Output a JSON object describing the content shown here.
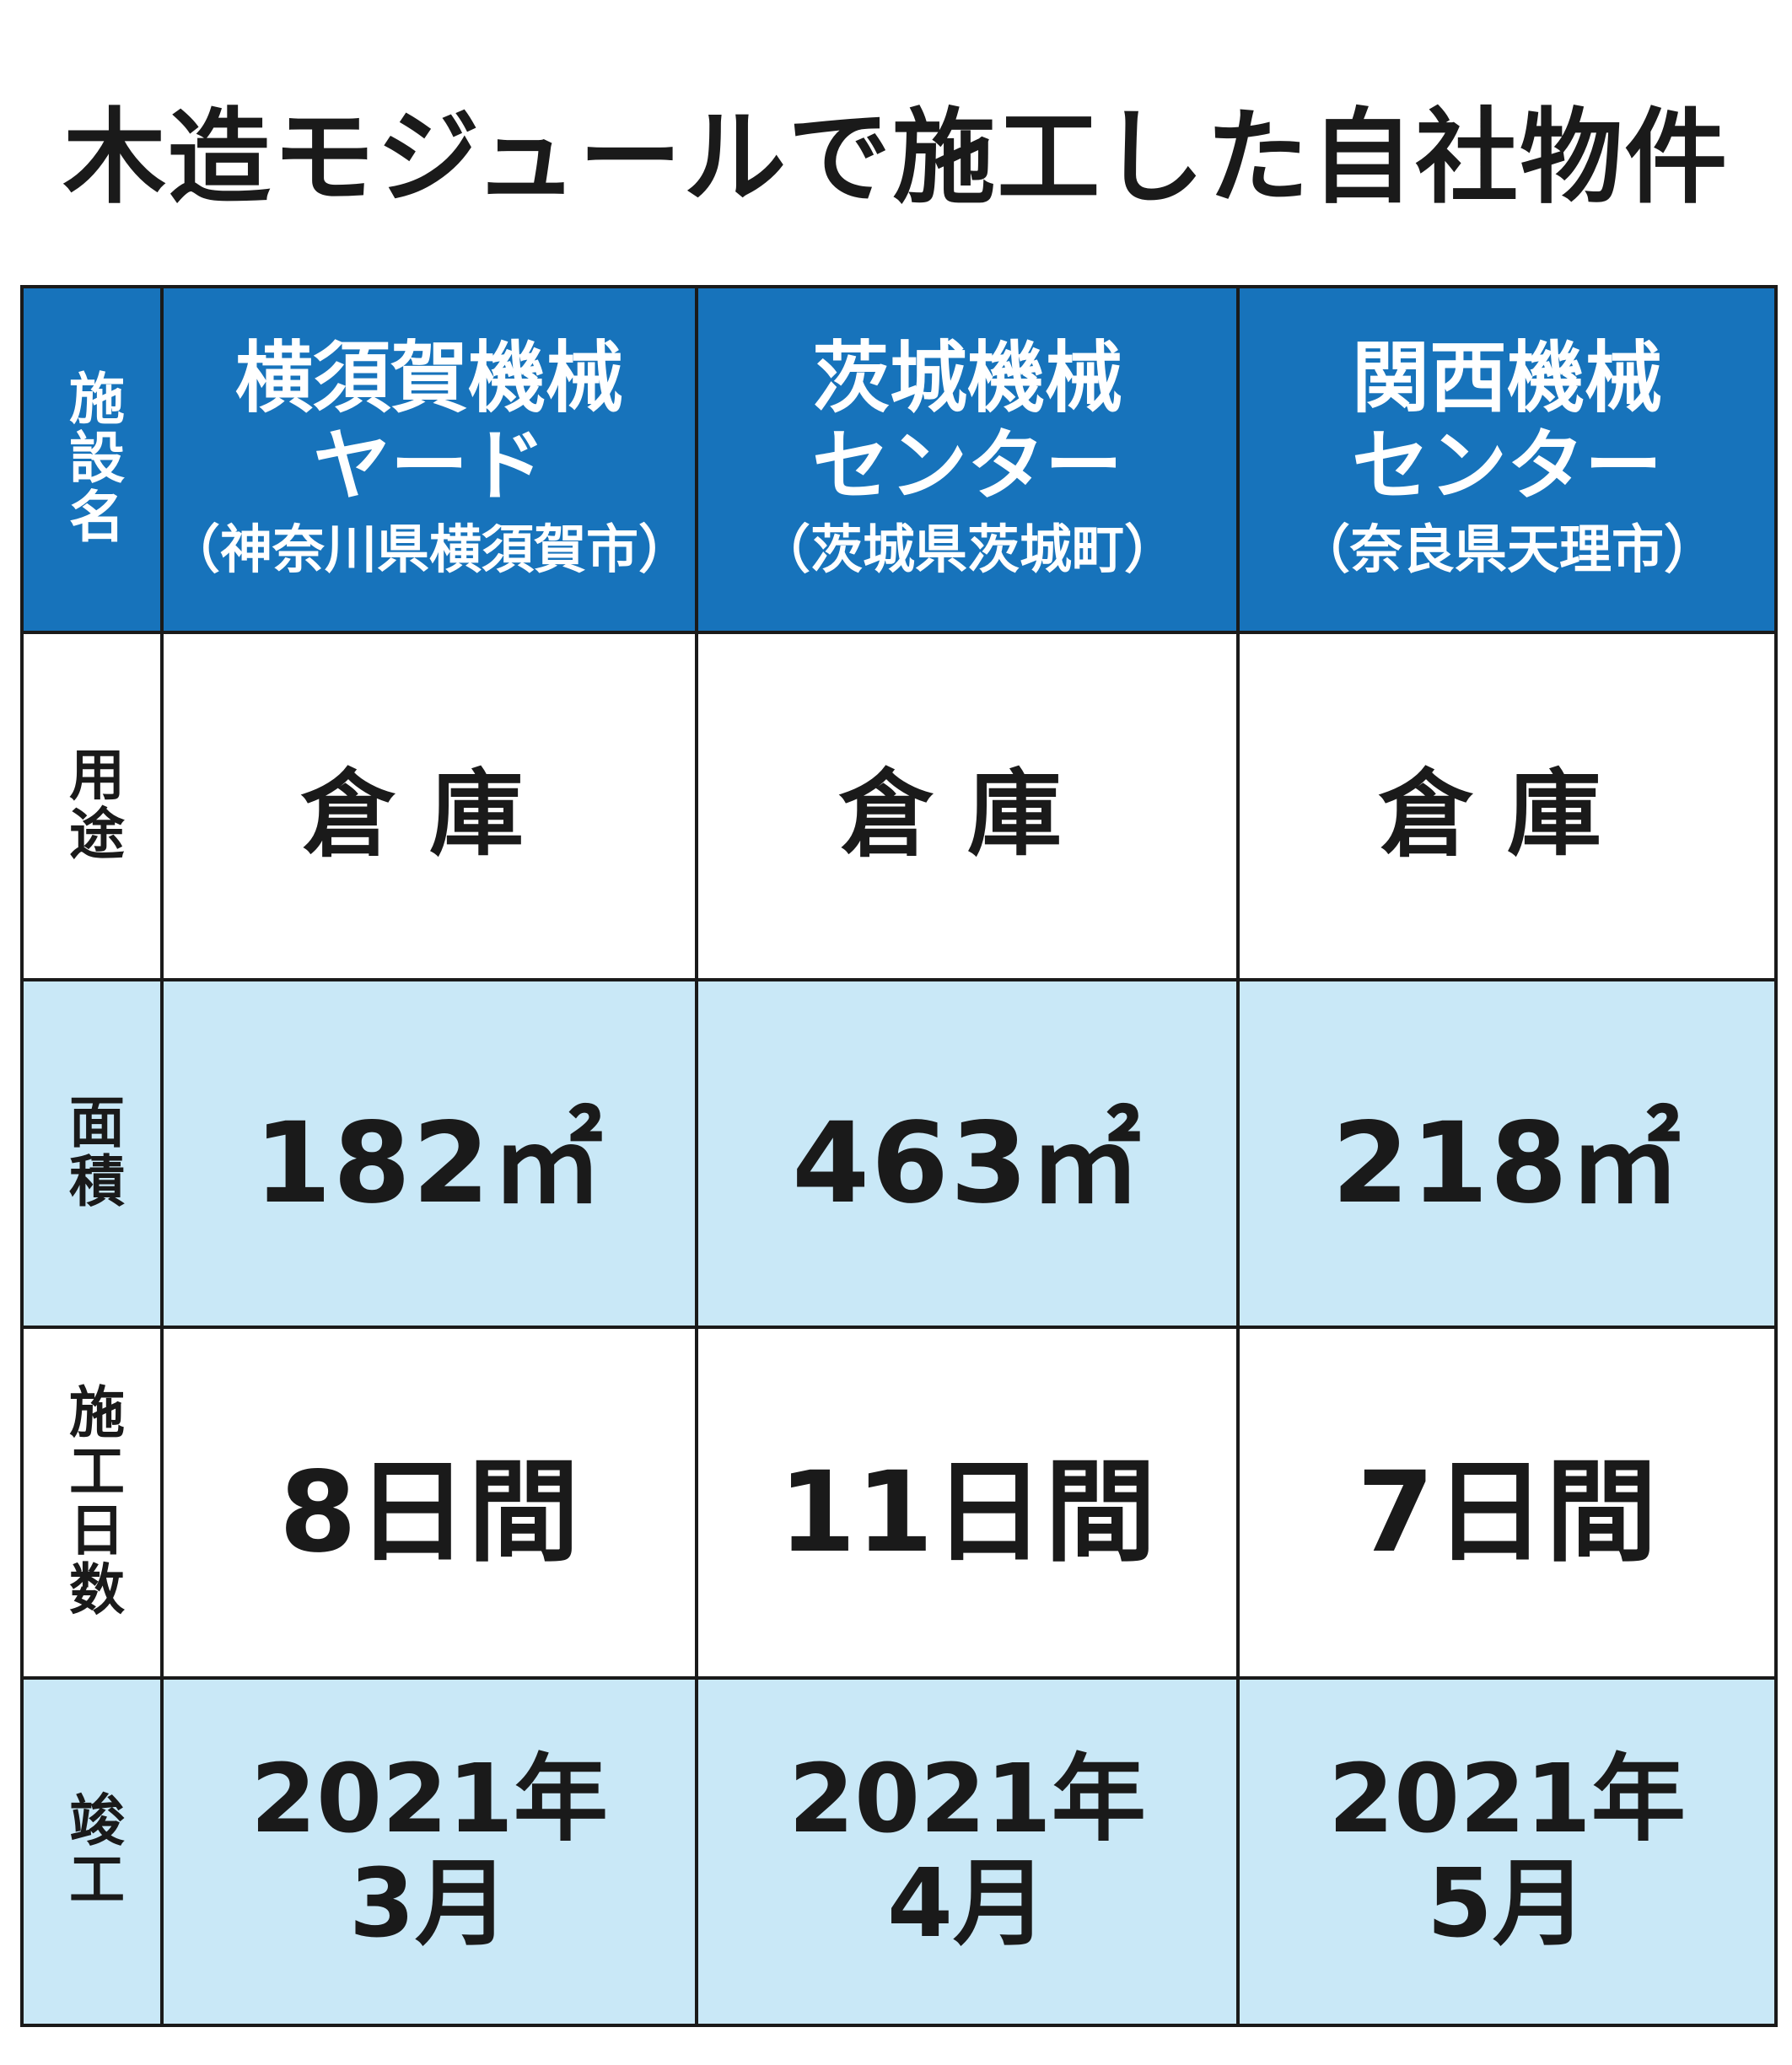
{
  "title": "木造モジュールで施工した自社物件",
  "row_labels": {
    "name": "施設名",
    "usage": "用途",
    "area": "面積",
    "days": "施工日数",
    "completion": "竣工"
  },
  "facilities": [
    {
      "name_line1": "横須賀機械",
      "name_line2": "ヤード",
      "location": "（神奈川県横須賀市）",
      "usage": "倉庫",
      "area": "182㎡",
      "days": "8日間",
      "completion_year": "2021年",
      "completion_month": "3月"
    },
    {
      "name_line1": "茨城機械",
      "name_line2": "センター",
      "location": "（茨城県茨城町）",
      "usage": "倉庫",
      "area": "463㎡",
      "days": "11日間",
      "completion_year": "2021年",
      "completion_month": "4月"
    },
    {
      "name_line1": "関西機械",
      "name_line2": "センター",
      "location": "（奈良県天理市）",
      "usage": "倉庫",
      "area": "218㎡",
      "days": "7日間",
      "completion_year": "2021年",
      "completion_month": "5月"
    }
  ],
  "colors": {
    "header_bg": "#1773bb",
    "header_text": "#ffffff",
    "shaded_row_bg": "#c9e8f7",
    "border": "#1a1a1a"
  }
}
